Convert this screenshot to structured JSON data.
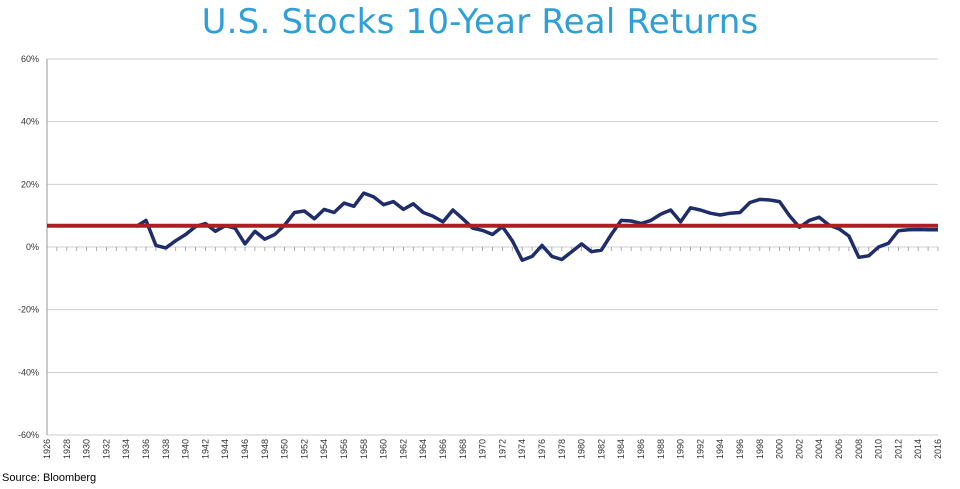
{
  "chart_data": {
    "type": "line",
    "title": "U.S. Stocks 10-Year Real Returns",
    "source": "Source: Bloomberg",
    "ylim": [
      -0.6,
      0.6
    ],
    "xlim": [
      1926,
      2016
    ],
    "ytick_values": [
      0.6,
      0.4,
      0.2,
      0.0,
      -0.2,
      -0.4,
      -0.6
    ],
    "ytick_labels": [
      "60%",
      "40%",
      "20%",
      "0%",
      "-20%",
      "-40%",
      "-60%"
    ],
    "xtick_labels": [
      "1926",
      "1928",
      "1930",
      "1932",
      "1934",
      "1936",
      "1938",
      "1940",
      "1942",
      "1944",
      "1946",
      "1948",
      "1950",
      "1952",
      "1954",
      "1956",
      "1958",
      "1960",
      "1962",
      "1964",
      "1966",
      "1968",
      "1970",
      "1972",
      "1974",
      "1976",
      "1978",
      "1980",
      "1982",
      "1984",
      "1986",
      "1988",
      "1990",
      "1992",
      "1994",
      "1996",
      "1998",
      "2000",
      "2002",
      "2004",
      "2006",
      "2008",
      "2010",
      "2012",
      "2014",
      "2016"
    ],
    "grid": true,
    "series": [
      {
        "color": "#1f2d6b",
        "x": [
          1935,
          1936,
          1937,
          1938,
          1939,
          1940,
          1941,
          1942,
          1943,
          1944,
          1945,
          1946,
          1947,
          1948,
          1949,
          1950,
          1951,
          1952,
          1953,
          1954,
          1955,
          1956,
          1957,
          1958,
          1959,
          1960,
          1961,
          1962,
          1963,
          1964,
          1965,
          1966,
          1967,
          1968,
          1969,
          1970,
          1971,
          1972,
          1973,
          1974,
          1975,
          1976,
          1977,
          1978,
          1979,
          1980,
          1981,
          1982,
          1983,
          1984,
          1985,
          1986,
          1987,
          1988,
          1989,
          1990,
          1991,
          1992,
          1993,
          1994,
          1995,
          1996,
          1997,
          1998,
          1999,
          2000,
          2001,
          2002,
          2003,
          2004,
          2005,
          2006,
          2007,
          2008,
          2009,
          2010,
          2011,
          2012,
          2013,
          2014,
          2015,
          2016
        ],
        "values": [
          0.065,
          0.085,
          0.005,
          -0.003,
          0.02,
          0.04,
          0.065,
          0.075,
          0.05,
          0.068,
          0.06,
          0.01,
          0.05,
          0.025,
          0.04,
          0.07,
          0.11,
          0.115,
          0.09,
          0.12,
          0.11,
          0.14,
          0.13,
          0.172,
          0.16,
          0.135,
          0.145,
          0.12,
          0.138,
          0.11,
          0.098,
          0.08,
          0.118,
          0.09,
          0.06,
          0.053,
          0.04,
          0.065,
          0.02,
          -0.042,
          -0.03,
          0.005,
          -0.03,
          -0.04,
          -0.015,
          0.01,
          -0.015,
          -0.01,
          0.04,
          0.085,
          0.083,
          0.075,
          0.085,
          0.105,
          0.118,
          0.08,
          0.125,
          0.118,
          0.108,
          0.102,
          0.108,
          0.11,
          0.142,
          0.152,
          0.15,
          0.145,
          0.1,
          0.063,
          0.085,
          0.095,
          0.07,
          0.058,
          0.035,
          -0.033,
          -0.028,
          0.0,
          0.012,
          0.052,
          0.055,
          0.056,
          0.055,
          0.055
        ]
      },
      {
        "color": "#b01d23",
        "x": [
          1926,
          2016
        ],
        "values": [
          0.068,
          0.068
        ]
      }
    ]
  }
}
